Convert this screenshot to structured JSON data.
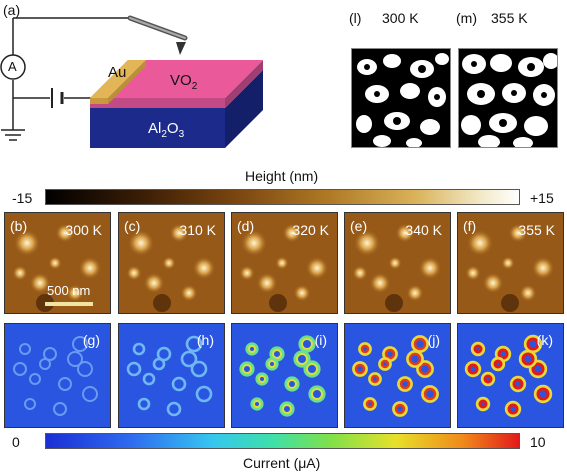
{
  "figure": {
    "panel_a": {
      "label": "(a)",
      "meter": "A",
      "au": "Au",
      "vo2_main": "VO",
      "vo2_sub": "2",
      "al_a": "Al",
      "al_sub1": "2",
      "al_o": "O",
      "al_sub2": "3"
    },
    "panel_l": {
      "label": "(l)",
      "temp": "300 K"
    },
    "panel_m": {
      "label": "(m)",
      "temp": "355 K"
    },
    "height_bar": {
      "title": "Height (nm)",
      "min": "-15",
      "max": "+15"
    },
    "current_bar": {
      "title": "Current (μA)",
      "min": "0",
      "max": "10"
    },
    "top_row": [
      {
        "label": "(b)",
        "temp": "300 K"
      },
      {
        "label": "(c)",
        "temp": "310 K"
      },
      {
        "label": "(d)",
        "temp": "320 K"
      },
      {
        "label": "(e)",
        "temp": "340 K"
      },
      {
        "label": "(f)",
        "temp": "355 K"
      }
    ],
    "bottom_row": [
      {
        "label": "(g)"
      },
      {
        "label": "(h)"
      },
      {
        "label": "(i)"
      },
      {
        "label": "(j)"
      },
      {
        "label": "(k)"
      }
    ],
    "scale_bar": "500 nm"
  }
}
